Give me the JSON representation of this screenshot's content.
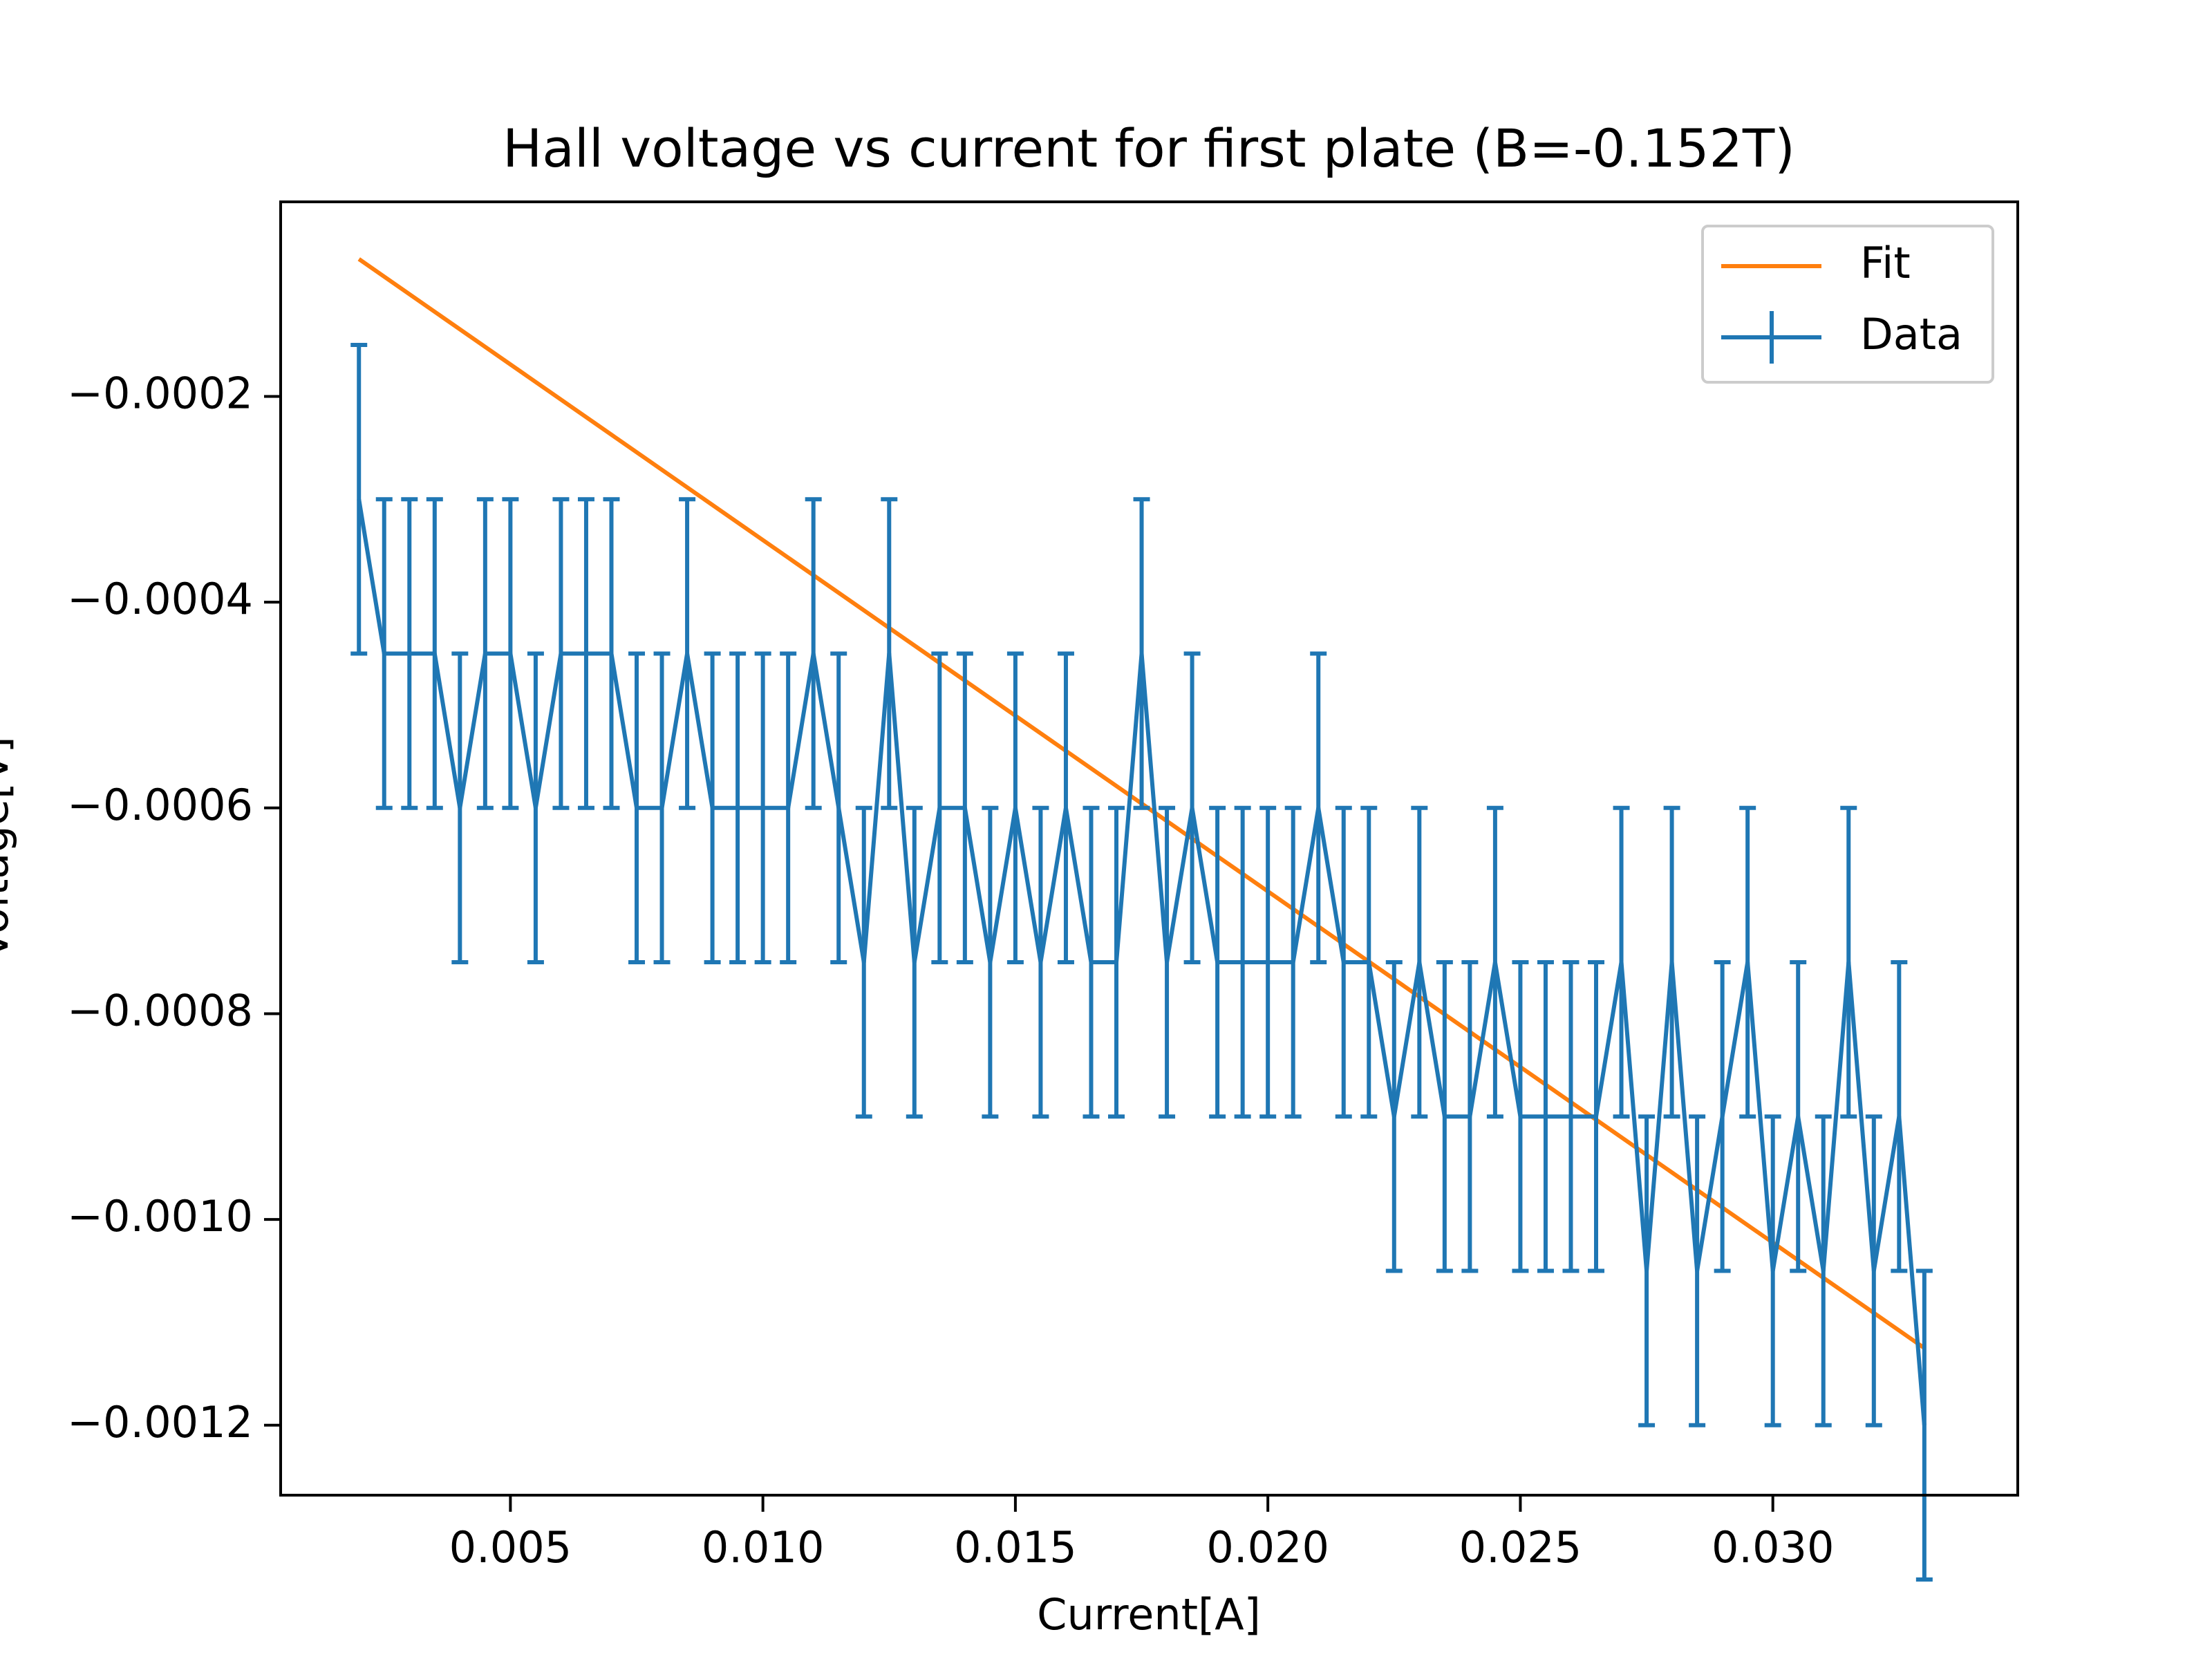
{
  "chart_data": {
    "type": "line",
    "title": "Hall voltage vs current for first plate (B=-0.152T)",
    "xlabel": "Current[A]",
    "ylabel": "Voltage[V]",
    "xlim": [
      0.00045,
      0.03485
    ],
    "ylim": [
      -0.001268,
      -1.09e-05
    ],
    "xticks": [
      0.005,
      {
        "value": 0.01,
        "label": "0.010"
      },
      0.015,
      {
        "value": 0.02,
        "label": "0.020"
      },
      0.025,
      {
        "value": 0.03,
        "label": "0.030"
      }
    ],
    "yticks": [
      {
        "value": -0.0002,
        "label": "−0.0002"
      },
      {
        "value": -0.0004,
        "label": "−0.0004"
      },
      {
        "value": -0.0006,
        "label": "−0.0006"
      },
      {
        "value": -0.0008,
        "label": "−0.0008"
      },
      {
        "value": -0.001,
        "label": "−0.0010"
      },
      {
        "value": -0.0012,
        "label": "−0.0012"
      }
    ],
    "legend": "upper right",
    "series": [
      {
        "name": "Fit",
        "color": "#ff7f0e",
        "x": [
          0.002,
          0.033
        ],
        "values": [
          -6.65e-05,
          -0.001125
        ]
      },
      {
        "name": "Data",
        "color": "#1f77b4",
        "yerr": 0.00015,
        "x": [
          0.002,
          0.0025,
          0.003,
          0.0035,
          0.004,
          0.0045,
          0.005,
          0.0055,
          0.006,
          0.0065,
          0.007,
          0.0075,
          0.008,
          0.0085,
          0.009,
          0.0095,
          0.01,
          0.0105,
          0.011,
          0.0115,
          0.012,
          0.0125,
          0.013,
          0.0135,
          0.014,
          0.0145,
          0.015,
          0.0155,
          0.016,
          0.0165,
          0.017,
          0.0175,
          0.018,
          0.0185,
          0.019,
          0.0195,
          0.02,
          0.0205,
          0.021,
          0.0215,
          0.022,
          0.0225,
          0.023,
          0.0235,
          0.024,
          0.0245,
          0.025,
          0.0255,
          0.026,
          0.0265,
          0.027,
          0.0275,
          0.028,
          0.0285,
          0.029,
          0.0295,
          0.03,
          0.0305,
          0.031,
          0.0315,
          0.032,
          0.0325,
          0.033
        ],
        "values": [
          -0.0003,
          -0.00045,
          -0.00045,
          -0.00045,
          -0.0006,
          -0.00045,
          -0.00045,
          -0.0006,
          -0.00045,
          -0.00045,
          -0.00045,
          -0.0006,
          -0.0006,
          -0.00045,
          -0.0006,
          -0.0006,
          -0.0006,
          -0.0006,
          -0.00045,
          -0.0006,
          -0.00075,
          -0.00045,
          -0.00075,
          -0.0006,
          -0.0006,
          -0.00075,
          -0.0006,
          -0.00075,
          -0.0006,
          -0.00075,
          -0.00075,
          -0.00045,
          -0.00075,
          -0.0006,
          -0.00075,
          -0.00075,
          -0.00075,
          -0.00075,
          -0.0006,
          -0.00075,
          -0.00075,
          -0.0009,
          -0.00075,
          -0.0009,
          -0.0009,
          -0.00075,
          -0.0009,
          -0.0009,
          -0.0009,
          -0.0009,
          -0.00075,
          -0.00105,
          -0.00075,
          -0.00105,
          -0.0009,
          -0.00075,
          -0.00105,
          -0.0009,
          -0.00105,
          -0.00075,
          -0.00105,
          -0.0009,
          -0.0012
        ]
      }
    ]
  }
}
